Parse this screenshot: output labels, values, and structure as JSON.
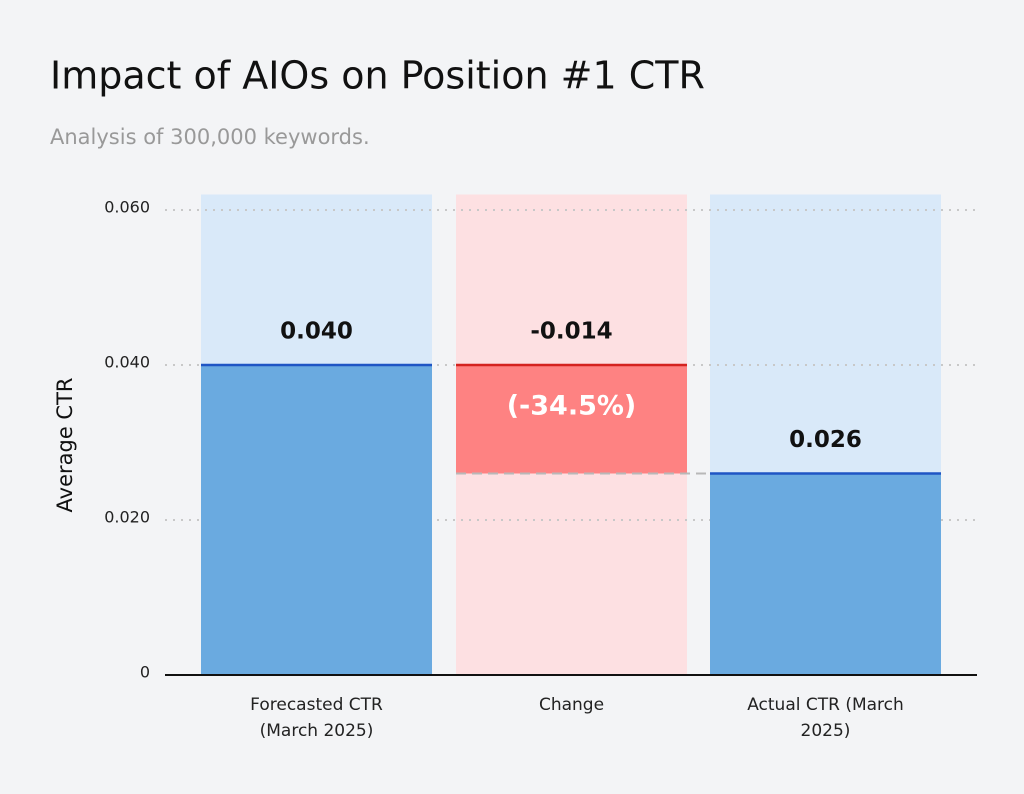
{
  "chart_data": {
    "type": "waterfall",
    "title": "Impact of AIOs on Position #1 CTR",
    "subtitle": "Analysis of 300,000 keywords.",
    "y_label": "Average CTR",
    "categories": [
      "Forecasted CTR (March 2025)",
      "Change",
      "Actual CTR (March 2025)"
    ],
    "values": [
      0.04,
      -0.014,
      0.026
    ],
    "value_labels": [
      "0.040",
      "-0.014",
      "0.026"
    ],
    "annotation": "(-34.5%)",
    "colors": [
      "#6aaae0",
      "#fe8282",
      "#6aaae0"
    ],
    "line_colors": [
      "#1f55c4",
      "#d4231f",
      "#1f55c4"
    ],
    "background_colors": [
      "#d9e9f9",
      "#fde0e2",
      "#d9e9f9"
    ],
    "ylim": [
      0,
      0.062
    ],
    "yticks": [
      0,
      {
        "value": 0.02,
        "label": "0.020"
      },
      {
        "value": 0.04,
        "label": "0.040"
      },
      {
        "value": 0.06,
        "label": "0.060"
      }
    ],
    "grid": true
  }
}
